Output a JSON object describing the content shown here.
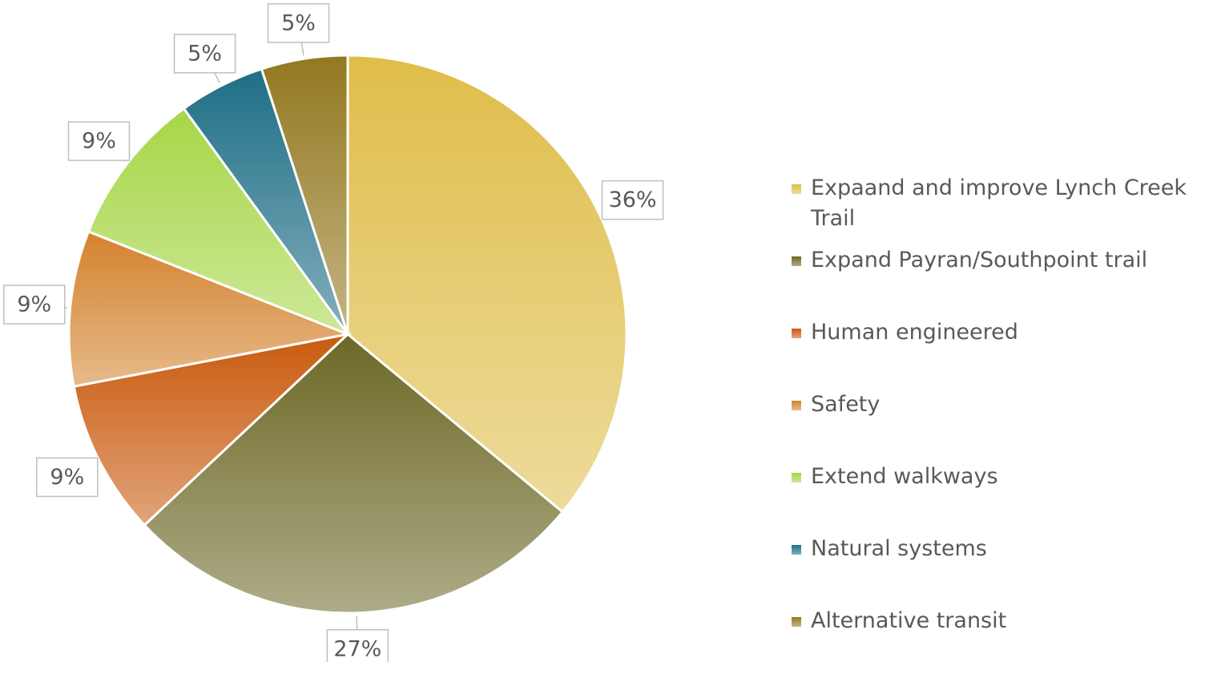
{
  "chart_data": {
    "type": "pie",
    "categories": [
      "Expaand and improve Lynch Creek Trail",
      "Expand Payran/Southpoint trail",
      "Human engineered",
      "Safety",
      "Extend walkways",
      "Natural systems",
      "Alternative transit"
    ],
    "values": [
      36,
      27,
      9,
      9,
      9,
      5,
      5
    ],
    "value_labels": [
      "36%",
      "27%",
      "9%",
      "9%",
      "9%",
      "5%",
      "5%"
    ],
    "colors": [
      "#dfbd4a",
      "#6c6826",
      "#c95a0e",
      "#d4822c",
      "#a6d646",
      "#1e6e86",
      "#937820"
    ],
    "legend": "right"
  }
}
